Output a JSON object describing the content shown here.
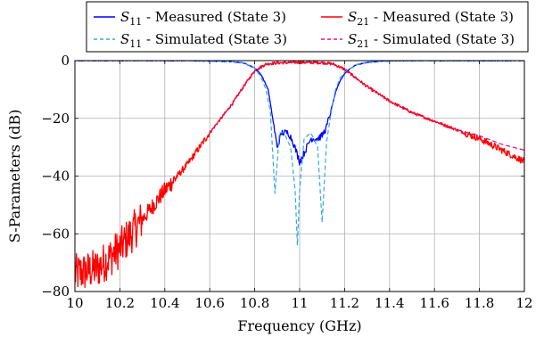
{
  "chart_data": {
    "type": "line",
    "xlabel": "Frequency (GHz)",
    "ylabel": "S-Parameters (dB)",
    "xlim": [
      10,
      12
    ],
    "ylim": [
      -80,
      0
    ],
    "x_ticks": [
      10,
      10.2,
      10.4,
      10.6,
      10.8,
      11,
      11.2,
      11.4,
      11.6,
      11.8,
      12
    ],
    "x_tick_labels": [
      "10",
      "10.2",
      "10.4",
      "10.6",
      "10.8",
      "11",
      "11.2",
      "11.4",
      "11.6",
      "11.8",
      "12"
    ],
    "y_ticks": [
      -80,
      -60,
      -40,
      -20,
      0
    ],
    "y_tick_labels": [
      "−80",
      "−60",
      "−40",
      "−20",
      "0"
    ],
    "grid": true,
    "legend_position": "top",
    "legend_columns": 2,
    "series": [
      {
        "name": "S11 - Measured (State 3)",
        "name_parts": {
          "symbol": "S",
          "sub": "11",
          "rest": " - Measured (State 3)"
        },
        "color": "#0000ff",
        "style": "solid",
        "x": [
          10,
          10.5,
          10.7,
          10.75,
          10.8,
          10.83,
          10.86,
          10.88,
          10.9,
          10.92,
          10.95,
          10.97,
          11.0,
          11.02,
          11.05,
          11.08,
          11.1,
          11.12,
          11.14,
          11.16,
          11.18,
          11.2,
          11.22,
          11.25,
          11.3,
          11.35,
          11.4,
          11.5,
          12
        ],
        "y": [
          0,
          0,
          -0.3,
          -0.8,
          -2.5,
          -5,
          -10,
          -20,
          -30,
          -25,
          -25,
          -28,
          -35,
          -32,
          -27,
          -27,
          -26,
          -23,
          -17,
          -11,
          -7,
          -4.5,
          -3,
          -1.5,
          -0.6,
          -0.3,
          -0.1,
          0,
          0
        ]
      },
      {
        "name": "S11 - Simulated (State 3)",
        "name_parts": {
          "symbol": "S",
          "sub": "11",
          "rest": " - Simulated (State 3)"
        },
        "color": "#33aadd",
        "style": "dashed",
        "x": [
          10,
          10.5,
          10.7,
          10.75,
          10.8,
          10.83,
          10.85,
          10.87,
          10.89,
          10.91,
          10.93,
          10.96,
          10.98,
          10.99,
          11.0,
          11.02,
          11.05,
          11.08,
          11.1,
          11.12,
          11.14,
          11.16,
          11.18,
          11.2,
          11.25,
          11.3,
          11.4,
          12
        ],
        "y": [
          0,
          0,
          -0.3,
          -0.8,
          -2.5,
          -6,
          -10,
          -18,
          -46,
          -25,
          -25,
          -30,
          -45,
          -64,
          -45,
          -27,
          -25,
          -30,
          -56,
          -28,
          -18,
          -10,
          -6,
          -4,
          -1.5,
          -0.5,
          -0.1,
          0
        ]
      },
      {
        "name": "S21 - Measured (State 3)",
        "name_parts": {
          "symbol": "S",
          "sub": "21",
          "rest": " - Measured (State 3)"
        },
        "color": "#ff0000",
        "style": "solid",
        "noise": true,
        "x": [
          10,
          10.1,
          10.2,
          10.3,
          10.4,
          10.5,
          10.6,
          10.7,
          10.75,
          10.8,
          10.85,
          10.9,
          11.0,
          11.1,
          11.15,
          11.2,
          11.25,
          11.3,
          11.4,
          11.5,
          11.6,
          11.7,
          11.8,
          11.9,
          12
        ],
        "y": [
          -74,
          -72,
          -65,
          -55,
          -45,
          -36,
          -25,
          -15,
          -9,
          -3.5,
          -1.2,
          -0.8,
          -0.6,
          -0.7,
          -1.2,
          -3,
          -6,
          -9,
          -14,
          -18,
          -21,
          -24,
          -27,
          -31,
          -35
        ]
      },
      {
        "name": "S21 - Simulated (State 3)",
        "name_parts": {
          "symbol": "S",
          "sub": "21",
          "rest": " - Simulated (State 3)"
        },
        "color": "#dd1188",
        "style": "dashed",
        "x": [
          10.6,
          10.7,
          10.75,
          10.8,
          10.85,
          10.9,
          11.0,
          11.1,
          11.15,
          11.2,
          11.25,
          11.3,
          11.4,
          11.5,
          11.6,
          11.7,
          11.8,
          11.9,
          12
        ],
        "y": [
          -25,
          -15,
          -9,
          -3.5,
          -1.2,
          -0.8,
          -0.6,
          -0.7,
          -1.2,
          -3,
          -6,
          -9,
          -14,
          -18,
          -21,
          -24,
          -26,
          -29,
          -31
        ]
      }
    ]
  }
}
